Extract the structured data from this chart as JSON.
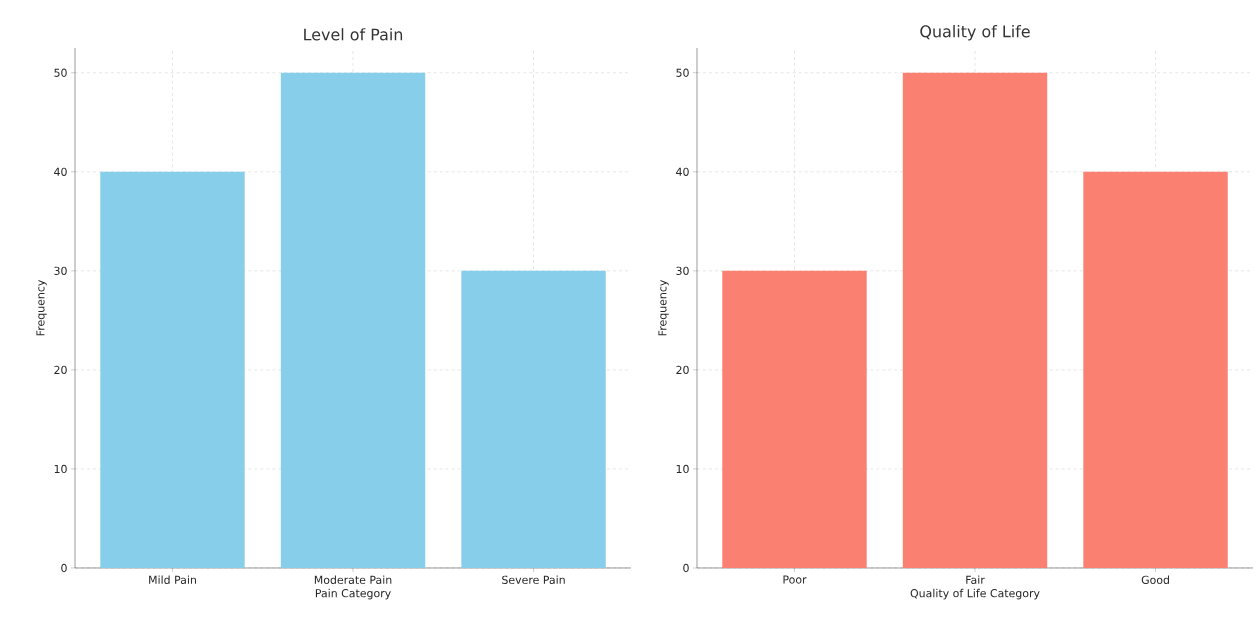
{
  "chart_data": [
    {
      "type": "bar",
      "title": "Level of Pain",
      "xlabel": "Pain Category",
      "ylabel": "Frequency",
      "categories": [
        "Mild Pain",
        "Moderate Pain",
        "Severe Pain"
      ],
      "values": [
        40,
        50,
        30
      ],
      "color": "#87ceeb",
      "ylim": [
        0,
        52.5
      ],
      "yticks": [
        0,
        10,
        20,
        30,
        40,
        50
      ],
      "grid": true
    },
    {
      "type": "bar",
      "title": "Quality of Life",
      "xlabel": "Quality of Life Category",
      "ylabel": "Frequency",
      "categories": [
        "Poor",
        "Fair",
        "Good"
      ],
      "values": [
        30,
        50,
        40
      ],
      "color": "#fa8072",
      "ylim": [
        0,
        52.5
      ],
      "yticks": [
        0,
        10,
        20,
        30,
        40,
        50
      ],
      "grid": true
    }
  ]
}
